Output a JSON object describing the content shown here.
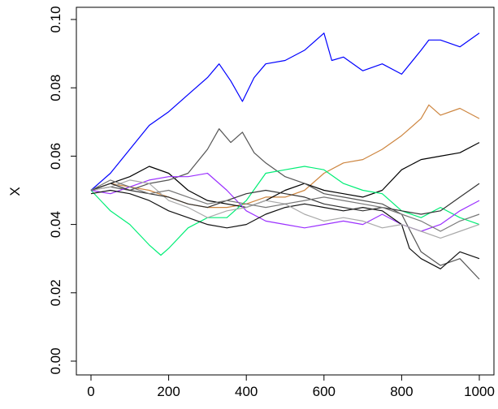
{
  "chart_data": {
    "type": "line",
    "title": "",
    "xlabel": "",
    "ylabel": "X",
    "xlim": [
      0,
      1000
    ],
    "ylim": [
      0,
      0.1
    ],
    "xticks": [
      0,
      200,
      400,
      600,
      800,
      1000
    ],
    "xtick_labels": [
      "0",
      "200",
      "400",
      "600",
      "800",
      "1000"
    ],
    "yticks": [
      0,
      0.02,
      0.04,
      0.06,
      0.08,
      0.1
    ],
    "ytick_labels": [
      "0.00",
      "0.02",
      "0.04",
      "0.06",
      "0.08",
      "0.10"
    ],
    "grid": false,
    "legend": "none",
    "series": [
      {
        "color": "#0000ff",
        "x": [
          0,
          50,
          100,
          150,
          200,
          250,
          300,
          330,
          360,
          390,
          420,
          450,
          500,
          550,
          600,
          620,
          650,
          700,
          750,
          800,
          850,
          870,
          900,
          950,
          1000
        ],
        "y": [
          0.05,
          0.055,
          0.062,
          0.069,
          0.073,
          0.078,
          0.083,
          0.087,
          0.082,
          0.076,
          0.083,
          0.087,
          0.088,
          0.091,
          0.096,
          0.088,
          0.089,
          0.085,
          0.087,
          0.084,
          0.091,
          0.094,
          0.094,
          0.092,
          0.096
        ]
      },
      {
        "color": "#cd853f",
        "x": [
          0,
          50,
          100,
          150,
          200,
          250,
          300,
          350,
          400,
          450,
          500,
          550,
          600,
          650,
          700,
          750,
          800,
          850,
          870,
          900,
          950,
          1000
        ],
        "y": [
          0.05,
          0.052,
          0.051,
          0.05,
          0.048,
          0.046,
          0.045,
          0.045,
          0.046,
          0.048,
          0.048,
          0.05,
          0.055,
          0.058,
          0.059,
          0.062,
          0.066,
          0.071,
          0.075,
          0.072,
          0.074,
          0.071
        ]
      },
      {
        "color": "#000000",
        "x": [
          0,
          50,
          100,
          150,
          200,
          250,
          300,
          350,
          400,
          450,
          500,
          550,
          600,
          650,
          700,
          750,
          800,
          850,
          900,
          950,
          1000
        ],
        "y": [
          0.05,
          0.052,
          0.054,
          0.057,
          0.055,
          0.05,
          0.047,
          0.046,
          0.045,
          0.047,
          0.05,
          0.052,
          0.05,
          0.049,
          0.048,
          0.05,
          0.056,
          0.059,
          0.06,
          0.061,
          0.064
        ]
      },
      {
        "color": "#555555",
        "x": [
          0,
          50,
          100,
          150,
          200,
          250,
          300,
          330,
          360,
          390,
          420,
          450,
          500,
          550,
          600,
          650,
          700,
          750,
          800,
          850,
          900,
          950,
          1000
        ],
        "y": [
          0.05,
          0.051,
          0.05,
          0.052,
          0.053,
          0.055,
          0.062,
          0.068,
          0.064,
          0.067,
          0.061,
          0.058,
          0.054,
          0.052,
          0.049,
          0.048,
          0.047,
          0.046,
          0.043,
          0.032,
          0.028,
          0.03,
          0.024
        ]
      },
      {
        "color": "#00ee76",
        "x": [
          0,
          50,
          100,
          150,
          180,
          200,
          250,
          300,
          350,
          400,
          450,
          500,
          550,
          600,
          650,
          700,
          750,
          800,
          850,
          900,
          950,
          1000
        ],
        "y": [
          0.05,
          0.044,
          0.04,
          0.034,
          0.031,
          0.033,
          0.039,
          0.042,
          0.042,
          0.047,
          0.055,
          0.056,
          0.057,
          0.056,
          0.052,
          0.05,
          0.049,
          0.044,
          0.042,
          0.045,
          0.042,
          0.04
        ]
      },
      {
        "color": "#9b30ff",
        "x": [
          0,
          50,
          100,
          150,
          200,
          250,
          300,
          350,
          400,
          450,
          500,
          550,
          600,
          650,
          700,
          750,
          800,
          850,
          900,
          950,
          1000
        ],
        "y": [
          0.05,
          0.049,
          0.051,
          0.053,
          0.054,
          0.054,
          0.055,
          0.05,
          0.044,
          0.041,
          0.04,
          0.039,
          0.04,
          0.041,
          0.04,
          0.043,
          0.04,
          0.038,
          0.04,
          0.044,
          0.047
        ]
      },
      {
        "color": "#111111",
        "x": [
          0,
          50,
          100,
          150,
          200,
          250,
          300,
          350,
          400,
          450,
          500,
          550,
          600,
          650,
          700,
          750,
          800,
          820,
          850,
          900,
          950,
          1000
        ],
        "y": [
          0.049,
          0.05,
          0.049,
          0.047,
          0.044,
          0.042,
          0.04,
          0.039,
          0.04,
          0.043,
          0.045,
          0.046,
          0.045,
          0.044,
          0.045,
          0.044,
          0.04,
          0.033,
          0.03,
          0.027,
          0.032,
          0.03
        ]
      },
      {
        "color": "#a9a9a9",
        "x": [
          0,
          50,
          100,
          150,
          200,
          250,
          300,
          350,
          400,
          450,
          500,
          550,
          600,
          650,
          700,
          750,
          800,
          850,
          900,
          950,
          1000
        ],
        "y": [
          0.05,
          0.051,
          0.053,
          0.052,
          0.047,
          0.045,
          0.042,
          0.044,
          0.045,
          0.047,
          0.046,
          0.043,
          0.041,
          0.042,
          0.041,
          0.039,
          0.04,
          0.038,
          0.036,
          0.038,
          0.04
        ]
      },
      {
        "color": "#333333",
        "x": [
          0,
          50,
          100,
          150,
          200,
          250,
          300,
          350,
          400,
          450,
          500,
          550,
          600,
          650,
          700,
          750,
          800,
          850,
          900,
          950,
          1000
        ],
        "y": [
          0.05,
          0.052,
          0.05,
          0.049,
          0.048,
          0.046,
          0.045,
          0.047,
          0.049,
          0.05,
          0.049,
          0.048,
          0.046,
          0.045,
          0.044,
          0.045,
          0.044,
          0.043,
          0.044,
          0.048,
          0.052
        ]
      },
      {
        "color": "#777777",
        "x": [
          0,
          50,
          100,
          150,
          200,
          250,
          300,
          350,
          400,
          450,
          500,
          550,
          600,
          650,
          700,
          750,
          800,
          850,
          900,
          950,
          1000
        ],
        "y": [
          0.05,
          0.053,
          0.051,
          0.049,
          0.05,
          0.048,
          0.046,
          0.047,
          0.046,
          0.045,
          0.046,
          0.047,
          0.048,
          0.047,
          0.046,
          0.045,
          0.043,
          0.041,
          0.038,
          0.041,
          0.043
        ]
      }
    ]
  }
}
